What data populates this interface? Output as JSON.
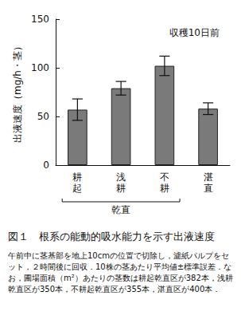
{
  "chart_data": {
    "type": "bar",
    "title": "収穫10日前",
    "y_label": "出液速度（mg/h・茎）",
    "categories": [
      "耕起",
      "浅耕",
      "不耕",
      "湛直"
    ],
    "values": [
      57,
      79,
      102,
      58
    ],
    "errors": [
      11,
      7,
      10,
      6
    ],
    "groups": [
      {
        "label": "乾直",
        "categories": [
          "耕起",
          "浅耕",
          "不耕"
        ]
      }
    ],
    "color": "#7a7a7a",
    "ylim": [
      0,
      150
    ],
    "yticks": [
      0,
      50,
      100,
      150
    ],
    "grid": false,
    "caption": "図１　根系の能動的吸水能力を示す出液速度",
    "note": "午前中に茎基部を地上10cmの位置で切除し，濾紙パルプをセット，２時間後に回収．10株の茎あたり平均値±標準誤差．なお，圃場面積（m²）あたりの茎数は耕起乾直区が382本，浅耕乾直区が350本，不耕起乾直区が355本，湛直区が400本．"
  }
}
